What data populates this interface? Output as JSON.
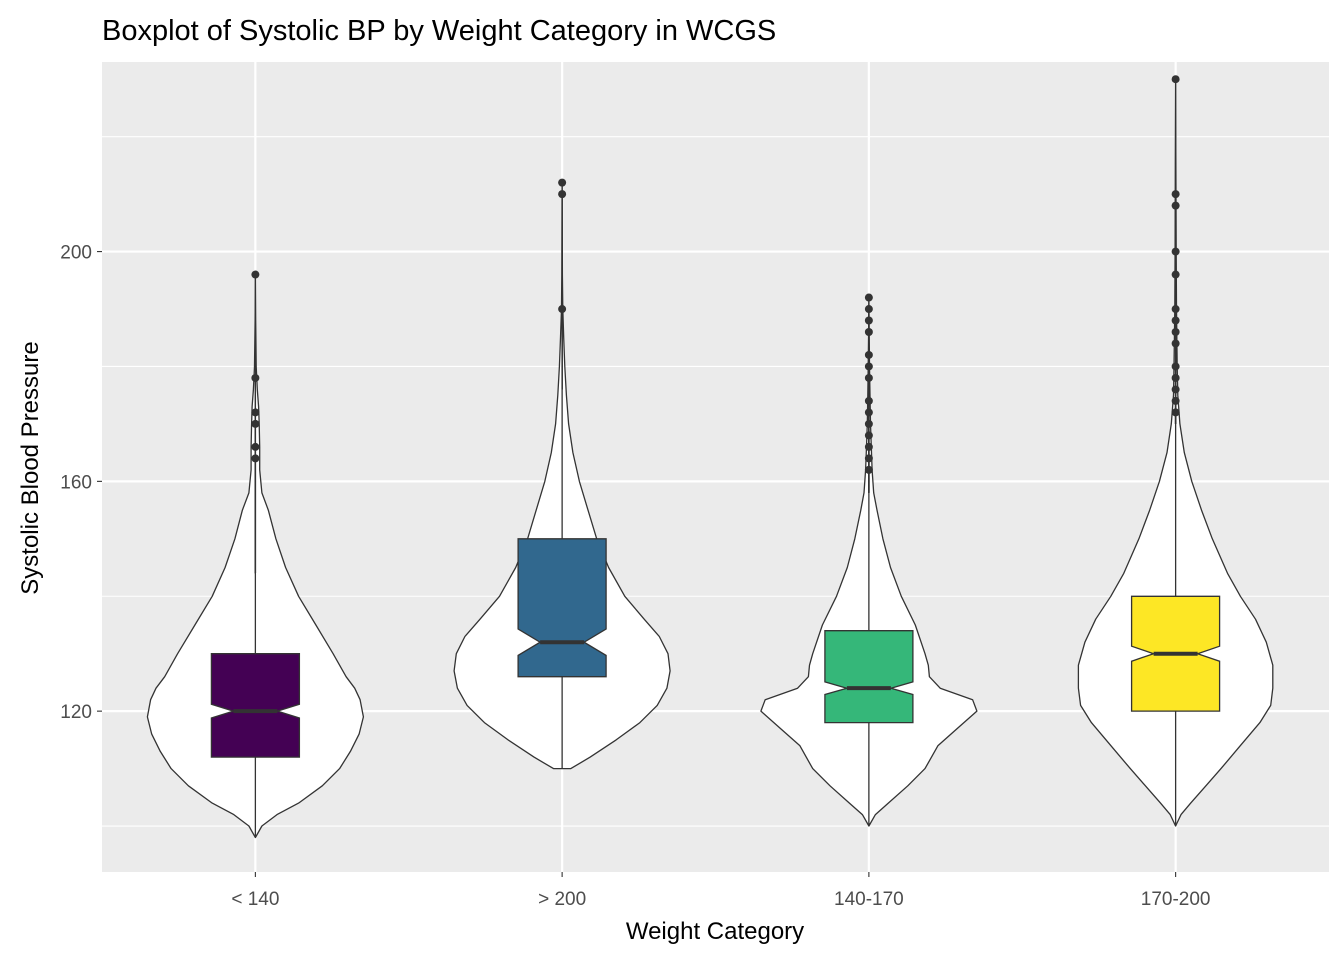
{
  "chart_data": {
    "type": "violin-boxplot",
    "title": "Boxplot of Systolic BP by Weight Category in WCGS",
    "xlabel": "Weight Category",
    "ylabel": "Systolic Blood Pressure",
    "ylim": [
      92,
      233
    ],
    "y_ticks": [
      120,
      160,
      200
    ],
    "y_tick_labels": [
      "120",
      "160",
      "200"
    ],
    "grid": true,
    "panel_background": "#ebebeb",
    "grid_color": "#ffffff",
    "categories": [
      "< 140",
      "> 200",
      "140-170",
      "170-200"
    ],
    "fill_colors": [
      "#440154",
      "#31688e",
      "#35b779",
      "#fde725"
    ],
    "groups": [
      {
        "category": "< 140",
        "violin_min": 98,
        "violin_max": 196,
        "violin_profile": [
          [
            98,
            0.0
          ],
          [
            100,
            0.06
          ],
          [
            102,
            0.2
          ],
          [
            104,
            0.4
          ],
          [
            107,
            0.62
          ],
          [
            110,
            0.78
          ],
          [
            113,
            0.88
          ],
          [
            116,
            0.96
          ],
          [
            119,
            1.0
          ],
          [
            122,
            0.97
          ],
          [
            124,
            0.92
          ],
          [
            126,
            0.84
          ],
          [
            130,
            0.72
          ],
          [
            135,
            0.56
          ],
          [
            140,
            0.4
          ],
          [
            145,
            0.28
          ],
          [
            150,
            0.19
          ],
          [
            155,
            0.12
          ],
          [
            158,
            0.06
          ],
          [
            162,
            0.04
          ],
          [
            166,
            0.04
          ],
          [
            170,
            0.035
          ],
          [
            173,
            0.03
          ],
          [
            176,
            0.018
          ],
          [
            180,
            0.008
          ],
          [
            188,
            0.003
          ],
          [
            196,
            0.0
          ]
        ],
        "box": {
          "q1": 112,
          "median": 120,
          "q3": 130,
          "notch_low": 118.8,
          "notch_high": 121.2
        },
        "whisker": [
          98,
          144
        ],
        "outliers": [
          164,
          166,
          170,
          172,
          178,
          196
        ]
      },
      {
        "category": "> 200",
        "violin_min": 110,
        "violin_max": 212,
        "violin_profile": [
          [
            110,
            0.08
          ],
          [
            112,
            0.26
          ],
          [
            115,
            0.5
          ],
          [
            118,
            0.72
          ],
          [
            121,
            0.88
          ],
          [
            124,
            0.97
          ],
          [
            127,
            1.0
          ],
          [
            130,
            0.98
          ],
          [
            133,
            0.9
          ],
          [
            136,
            0.76
          ],
          [
            140,
            0.58
          ],
          [
            145,
            0.43
          ],
          [
            150,
            0.32
          ],
          [
            155,
            0.24
          ],
          [
            160,
            0.16
          ],
          [
            165,
            0.1
          ],
          [
            170,
            0.06
          ],
          [
            175,
            0.04
          ],
          [
            180,
            0.025
          ],
          [
            185,
            0.015
          ],
          [
            190,
            0.006
          ],
          [
            196,
            0.003
          ],
          [
            212,
            0.0
          ]
        ],
        "box": {
          "q1": 126,
          "median": 132,
          "q3": 150,
          "notch_low": 129.7,
          "notch_high": 134.3
        },
        "whisker": [
          110,
          176
        ],
        "outliers": [
          190,
          210,
          212
        ]
      },
      {
        "category": "140-170",
        "violin_min": 100,
        "violin_max": 192,
        "violin_profile": [
          [
            100,
            0.0
          ],
          [
            102,
            0.06
          ],
          [
            104,
            0.18
          ],
          [
            107,
            0.36
          ],
          [
            110,
            0.52
          ],
          [
            114,
            0.64
          ],
          [
            117,
            0.82
          ],
          [
            120,
            1.0
          ],
          [
            122,
            0.96
          ],
          [
            124,
            0.66
          ],
          [
            126,
            0.56
          ],
          [
            128,
            0.55
          ],
          [
            130,
            0.52
          ],
          [
            135,
            0.43
          ],
          [
            140,
            0.3
          ],
          [
            145,
            0.2
          ],
          [
            150,
            0.13
          ],
          [
            155,
            0.075
          ],
          [
            158,
            0.045
          ],
          [
            162,
            0.03
          ],
          [
            166,
            0.022
          ],
          [
            170,
            0.015
          ],
          [
            175,
            0.01
          ],
          [
            180,
            0.006
          ],
          [
            186,
            0.003
          ],
          [
            192,
            0.0
          ]
        ],
        "box": {
          "q1": 118,
          "median": 124,
          "q3": 134,
          "notch_low": 122.9,
          "notch_high": 125.1
        },
        "whisker": [
          100,
          158
        ],
        "outliers": [
          162,
          164,
          166,
          168,
          170,
          172,
          174,
          178,
          180,
          182,
          186,
          188,
          190,
          192
        ]
      },
      {
        "category": "170-200",
        "violin_min": 100,
        "violin_max": 230,
        "violin_profile": [
          [
            100,
            0.0
          ],
          [
            102,
            0.05
          ],
          [
            104,
            0.14
          ],
          [
            107,
            0.28
          ],
          [
            110,
            0.42
          ],
          [
            114,
            0.6
          ],
          [
            118,
            0.78
          ],
          [
            121,
            0.88
          ],
          [
            124,
            0.9
          ],
          [
            128,
            0.9
          ],
          [
            132,
            0.84
          ],
          [
            136,
            0.74
          ],
          [
            140,
            0.6
          ],
          [
            144,
            0.48
          ],
          [
            150,
            0.34
          ],
          [
            155,
            0.24
          ],
          [
            160,
            0.15
          ],
          [
            165,
            0.08
          ],
          [
            170,
            0.04
          ],
          [
            175,
            0.02
          ],
          [
            180,
            0.015
          ],
          [
            190,
            0.008
          ],
          [
            200,
            0.005
          ],
          [
            215,
            0.003
          ],
          [
            230,
            0.0
          ]
        ],
        "box": {
          "q1": 120,
          "median": 130,
          "q3": 140,
          "notch_low": 128.7,
          "notch_high": 131.3
        },
        "whisker": [
          100,
          170
        ],
        "outliers": [
          172,
          174,
          176,
          178,
          180,
          184,
          186,
          188,
          190,
          196,
          200,
          208,
          210,
          230
        ]
      }
    ]
  }
}
